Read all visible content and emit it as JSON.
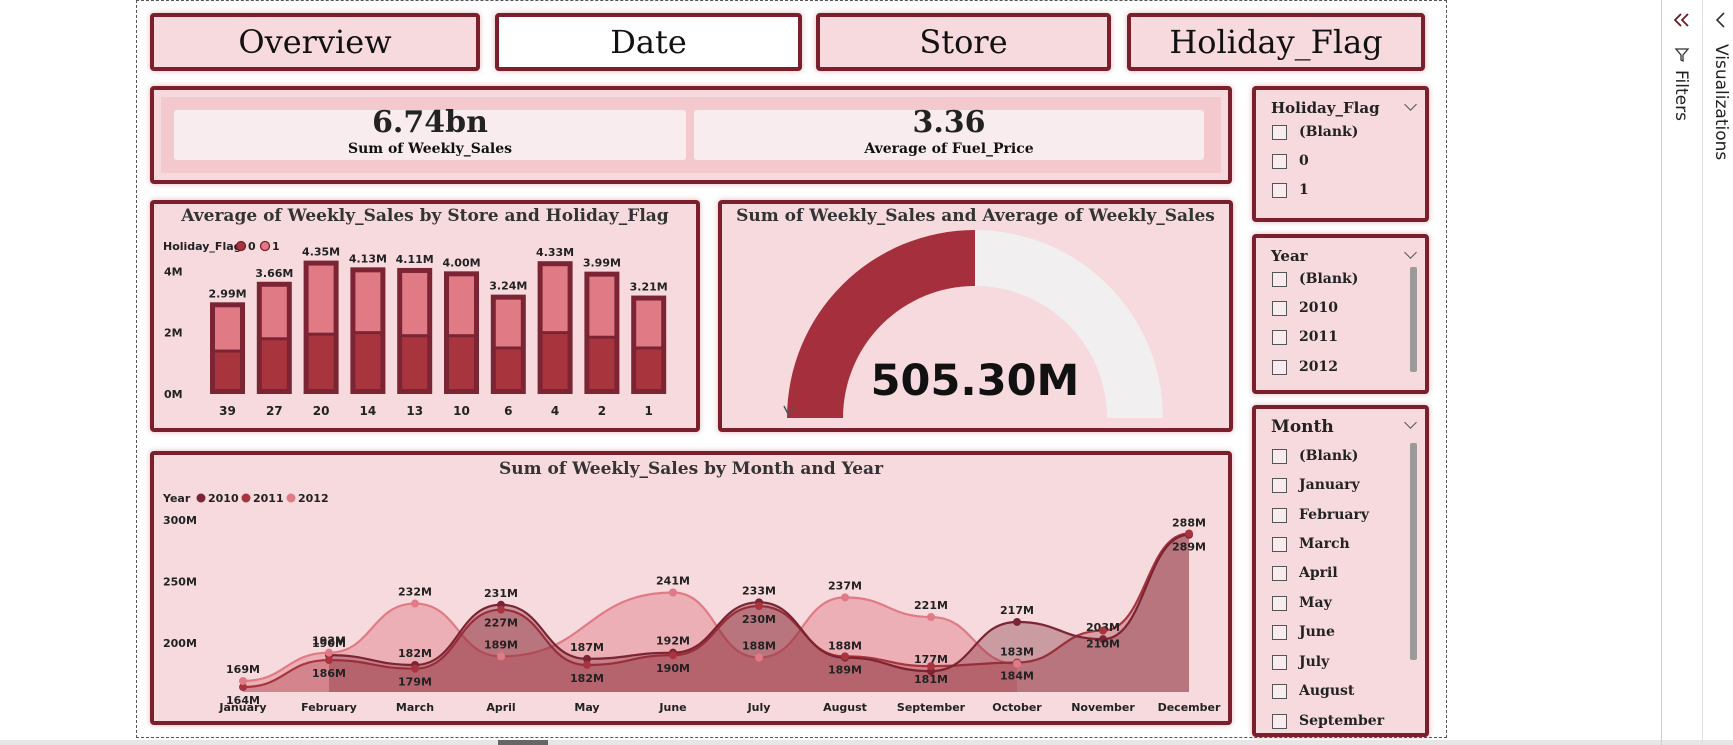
{
  "colors": {
    "panel_bg": "#f6dadd",
    "border": "#7a1f2b",
    "dark_series": "#7b2433",
    "mid_series": "#a8343e",
    "light_series": "#e07b86",
    "gauge_fill": "#a52f3c",
    "gauge_empty": "#f1efef"
  },
  "nav": {
    "buttons": [
      {
        "label": "Overview",
        "active": false
      },
      {
        "label": "Date",
        "active": true
      },
      {
        "label": "Store",
        "active": false
      },
      {
        "label": "Holiday_Flag",
        "active": false
      }
    ]
  },
  "kpis": [
    {
      "value": "6.74bn",
      "label": "Sum of Weekly_Sales"
    },
    {
      "value": "3.36",
      "label": "Average of Fuel_Price"
    }
  ],
  "gauge": {
    "title": "Sum of Weekly_Sales and Average of Weekly_Sales",
    "value_label": "505.30M",
    "fill_fraction": 0.5
  },
  "slicers": {
    "holiday": {
      "title": "Holiday_Flag",
      "items": [
        "(Blank)",
        "0",
        "1"
      ]
    },
    "year": {
      "title": "Year",
      "items": [
        "(Blank)",
        "2010",
        "2011",
        "2012"
      ]
    },
    "month": {
      "title": "Month",
      "items": [
        "(Blank)",
        "January",
        "February",
        "March",
        "April",
        "May",
        "June",
        "July",
        "August",
        "September"
      ]
    }
  },
  "sidebar": {
    "collapse_icon": "double-chevron-left",
    "filters_label": "Filters",
    "visualizations_label": "Visualizations"
  },
  "chart_data": [
    {
      "type": "bar",
      "title": "Average of Weekly_Sales by Store and Holiday_Flag",
      "legend_title": "Holiday_Flag",
      "legend": [
        "0",
        "1"
      ],
      "categories": [
        "39",
        "27",
        "20",
        "14",
        "13",
        "10",
        "6",
        "4",
        "2",
        "1"
      ],
      "series": [
        {
          "name": "0",
          "values": [
            1.45,
            1.85,
            2.0,
            2.05,
            1.95,
            1.95,
            1.55,
            2.05,
            1.9,
            1.55
          ]
        },
        {
          "name": "1",
          "values": [
            2.99,
            3.66,
            4.35,
            4.13,
            4.11,
            4.0,
            3.24,
            4.33,
            3.99,
            3.21
          ]
        }
      ],
      "data_labels": [
        "2.99M",
        "3.66M",
        "4.35M",
        "4.13M",
        "4.11M",
        "4.00M",
        "3.24M",
        "4.33M",
        "3.99M",
        "3.21M"
      ],
      "yticks": [
        "0M",
        "2M",
        "4M"
      ],
      "ylim": [
        0,
        4.5
      ],
      "grid": false,
      "legend_position": "top-left"
    },
    {
      "type": "area",
      "title": "Sum of Weekly_Sales by Month and Year",
      "legend_title": "Year",
      "categories": [
        "January",
        "February",
        "March",
        "April",
        "May",
        "June",
        "July",
        "August",
        "September",
        "October",
        "November",
        "December"
      ],
      "series": [
        {
          "name": "2010",
          "values": [
            null,
            190,
            182,
            231,
            187,
            192,
            233,
            188,
            177,
            217,
            203,
            288
          ],
          "labels": [
            "",
            "190M",
            "182M",
            "231M",
            "187M",
            "192M",
            "233M",
            "188M",
            "177M",
            "217M",
            "203M",
            "288M"
          ]
        },
        {
          "name": "2011",
          "values": [
            164,
            186,
            179,
            227,
            182,
            190,
            230,
            189,
            181,
            184,
            210,
            289
          ],
          "labels": [
            "164M",
            "186M",
            "179M",
            "227M",
            "182M",
            "190M",
            "230M",
            "189M",
            "181M",
            "184M",
            "210M",
            "289M"
          ]
        },
        {
          "name": "2012",
          "values": [
            169,
            192,
            232,
            189,
            null,
            241,
            188,
            237,
            221,
            183,
            null,
            null
          ],
          "labels": [
            "169M",
            "192M",
            "232M",
            "189M",
            "",
            "241M",
            "188M",
            "237M",
            "221M",
            "183M",
            "",
            ""
          ]
        }
      ],
      "yticks": [
        "200M",
        "250M",
        "300M"
      ],
      "ylim": [
        160,
        300
      ],
      "grid": false,
      "legend_position": "top-left"
    }
  ]
}
